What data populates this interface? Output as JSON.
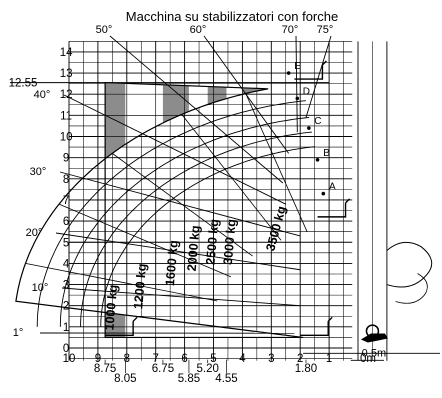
{
  "chart_data": {
    "type": "load-chart",
    "title": "Macchina su stabilizzatori con forche",
    "xlim": [
      10,
      -1.2
    ],
    "ylim": [
      -1,
      14.5
    ],
    "x_ticks": [
      10,
      9,
      8,
      7,
      6,
      5,
      4,
      3,
      2,
      1,
      0
    ],
    "x_tick_labels": [
      "10",
      "9",
      "8",
      "7",
      "6",
      "5",
      "4",
      "3",
      "2",
      "1",
      "0m"
    ],
    "x_extra_labels": [
      {
        "value": 8.75,
        "label": "8.75"
      },
      {
        "value": 8.05,
        "label": "8.05"
      },
      {
        "value": 6.75,
        "label": "6.75"
      },
      {
        "value": 5.85,
        "label": "5.85"
      },
      {
        "value": 5.2,
        "label": "5.20"
      },
      {
        "value": 4.55,
        "label": "4.55"
      },
      {
        "value": 1.8,
        "label": "1.80"
      }
    ],
    "y_ticks": [
      0,
      1,
      2,
      3,
      4,
      5,
      6,
      7,
      8,
      9,
      10,
      11,
      12,
      13,
      14
    ],
    "y_tick_labels": [
      "0",
      "1",
      "2",
      "3",
      "4",
      "5",
      "6",
      "7",
      "8",
      "9",
      "10",
      "11",
      "12",
      "13",
      "14"
    ],
    "max_height": {
      "value": 12.55,
      "label": "12.55"
    },
    "boom_angles": [
      {
        "label": "1°"
      },
      {
        "label": "10°"
      },
      {
        "label": "20°"
      },
      {
        "label": "30°"
      },
      {
        "label": "40°"
      },
      {
        "label": "50°"
      },
      {
        "label": "60°"
      },
      {
        "label": "70°"
      },
      {
        "label": "75°"
      }
    ],
    "extension_points": [
      {
        "label": "A",
        "x": 1.2,
        "y": 7.3
      },
      {
        "label": "B",
        "x": 1.4,
        "y": 8.9
      },
      {
        "label": "C",
        "x": 1.7,
        "y": 10.4
      },
      {
        "label": "D",
        "x": 2.1,
        "y": 11.8
      },
      {
        "label": "E",
        "x": 2.4,
        "y": 13.0
      }
    ],
    "load_zones": [
      {
        "name": "1000 kg",
        "x_min": 8.75,
        "x_max": 8.05
      },
      {
        "name": "1200 kg",
        "x_min": 8.05,
        "x_max": 6.75
      },
      {
        "name": "1600 kg",
        "x_min": 6.75,
        "x_max": 5.85
      },
      {
        "name": "2000 kg",
        "x_min": 5.85,
        "x_max": 5.2
      },
      {
        "name": "2500 kg",
        "x_min": 5.2,
        "x_max": 4.55
      },
      {
        "name": "3000 kg",
        "x_min": 4.55,
        "x_max": 4.0
      },
      {
        "name": "3500 kg",
        "x_min": 4.0,
        "x_max": 1.8
      }
    ],
    "footprint_label": "0.5m",
    "colors": {
      "zone_fill": "#8c8c8c",
      "grid": "#000000",
      "background": "#ffffff"
    }
  }
}
